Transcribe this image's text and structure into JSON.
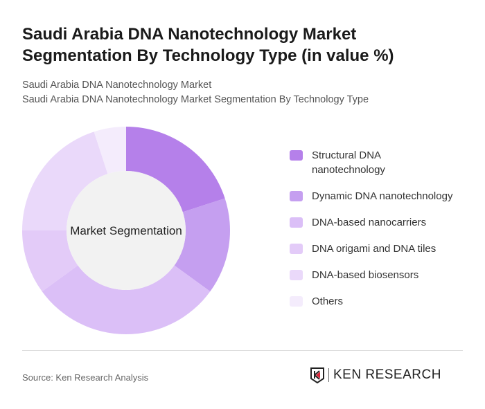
{
  "title": "Saudi Arabia DNA Nanotechnology Market Segmentation By Technology Type (in value %)",
  "subtitle1": "Saudi Arabia DNA Nanotechnology Market",
  "subtitle2": "Saudi Arabia DNA Nanotechnology Market Segmentation By Technology Type",
  "source": "Source: Ken Research Analysis",
  "logo_text": "KEN RESEARCH",
  "chart_data": {
    "type": "pie",
    "donut": true,
    "center_label": "Market Segmentation",
    "categories": [
      "Structural DNA nanotechnology",
      "Dynamic DNA nanotechnology",
      "DNA-based nanocarriers",
      "DNA origami and DNA tiles",
      "DNA-based biosensors",
      "Others"
    ],
    "values": [
      20,
      15,
      30,
      10,
      20,
      5
    ],
    "colors": [
      "#b580ea",
      "#c59ff0",
      "#dbbff7",
      "#e3cbf8",
      "#ead9fa",
      "#f4ecfc"
    ],
    "legend_position": "right"
  }
}
